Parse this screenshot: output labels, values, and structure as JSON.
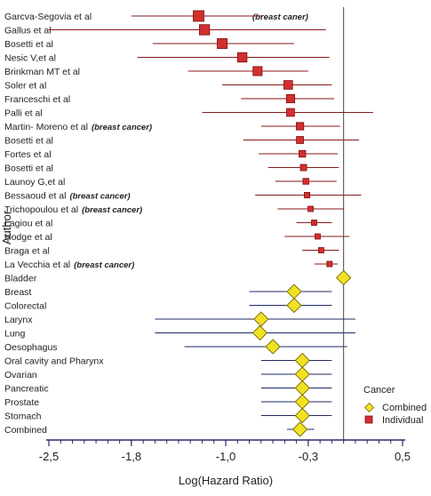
{
  "chart_data": {
    "type": "forest",
    "xlabel": "Log(Hazard Ratio)",
    "ylabel": "Author",
    "xlim": [
      -2.5,
      0.5
    ],
    "x_ticks": [
      -2.5,
      -1.8,
      -1.0,
      -0.3,
      0.5
    ],
    "x_tick_labels": [
      "-2,5",
      "-1,8",
      "-1,0",
      "-0,3",
      "0,5"
    ],
    "reference_line": 0,
    "colors": {
      "individual": "#d32f2f",
      "individual_ci": "#8b1a1a",
      "combined": "#f2e224",
      "combined_edge": "#7a6a00",
      "combined_ci": "#1f2a66",
      "axis": "#2a2a6a"
    },
    "legend": {
      "title": "Cancer",
      "items": [
        "Combined",
        "Individual"
      ],
      "position": "bottom-right"
    },
    "rows": [
      {
        "label": "Garcva-Segovia et al",
        "note": "(breast caner)",
        "group": "Individual",
        "est": -1.23,
        "lo": -1.8,
        "hi": -0.7
      },
      {
        "label": "Gallus et al",
        "note": "",
        "group": "Individual",
        "est": -1.18,
        "lo": -2.5,
        "hi": -0.15
      },
      {
        "label": "Bosetti et al",
        "note": "",
        "group": "Individual",
        "est": -1.03,
        "lo": -1.62,
        "hi": -0.42
      },
      {
        "label": "Nesic V,et al",
        "note": "",
        "group": "Individual",
        "est": -0.86,
        "lo": -1.75,
        "hi": -0.12
      },
      {
        "label": "Brinkman MT et al",
        "note": "",
        "group": "Individual",
        "est": -0.73,
        "lo": -1.32,
        "hi": -0.3
      },
      {
        "label": "Soler et al",
        "note": "",
        "group": "Individual",
        "est": -0.47,
        "lo": -1.03,
        "hi": -0.1
      },
      {
        "label": "Franceschi et al",
        "note": "",
        "group": "Individual",
        "est": -0.45,
        "lo": -0.87,
        "hi": -0.08
      },
      {
        "label": "Palli et al",
        "note": "",
        "group": "Individual",
        "est": -0.45,
        "lo": -1.2,
        "hi": 0.25
      },
      {
        "label": "Martin- Moreno et al",
        "note": "(breast cancer)",
        "group": "Individual",
        "est": -0.37,
        "lo": -0.7,
        "hi": -0.03
      },
      {
        "label": "Bosetti et al",
        "note": "",
        "group": "Individual",
        "est": -0.37,
        "lo": -0.85,
        "hi": 0.13
      },
      {
        "label": "Fortes et al",
        "note": "",
        "group": "Individual",
        "est": -0.35,
        "lo": -0.72,
        "hi": -0.05
      },
      {
        "label": "Bosetti et al",
        "note": "",
        "group": "Individual",
        "est": -0.34,
        "lo": -0.64,
        "hi": -0.04
      },
      {
        "label": "Launoy G,et al",
        "note": "",
        "group": "Individual",
        "est": -0.32,
        "lo": -0.58,
        "hi": -0.06
      },
      {
        "label": "Bessaoud et al",
        "note": "(breast cancer)",
        "group": "Individual",
        "est": -0.31,
        "lo": -0.75,
        "hi": 0.15
      },
      {
        "label": "Trichopoulou et al",
        "note": "(breast cancer)",
        "group": "Individual",
        "est": -0.28,
        "lo": -0.56,
        "hi": 0.0
      },
      {
        "label": "Lagiou et al",
        "note": "",
        "group": "Individual",
        "est": -0.25,
        "lo": -0.4,
        "hi": -0.1
      },
      {
        "label": "Hodge et al",
        "note": "",
        "group": "Individual",
        "est": -0.22,
        "lo": -0.5,
        "hi": 0.05
      },
      {
        "label": "Braga et al",
        "note": "",
        "group": "Individual",
        "est": -0.19,
        "lo": -0.35,
        "hi": -0.04
      },
      {
        "label": "La Vecchia et al",
        "note": "(breast cancer)",
        "group": "Individual",
        "est": -0.12,
        "lo": -0.25,
        "hi": -0.05
      },
      {
        "label": "Bladder",
        "note": "",
        "group": "Combined",
        "est": 0.0,
        "lo": 0.0,
        "hi": 0.0
      },
      {
        "label": "Breast",
        "note": "",
        "group": "Combined",
        "est": -0.42,
        "lo": -0.8,
        "hi": -0.1
      },
      {
        "label": "Colorectal",
        "note": "",
        "group": "Combined",
        "est": -0.42,
        "lo": -0.8,
        "hi": -0.1
      },
      {
        "label": "Larynx",
        "note": "",
        "group": "Combined",
        "est": -0.7,
        "lo": -1.6,
        "hi": 0.1
      },
      {
        "label": "Lung",
        "note": "",
        "group": "Combined",
        "est": -0.71,
        "lo": -1.6,
        "hi": 0.1
      },
      {
        "label": "Oesophagus",
        "note": "",
        "group": "Combined",
        "est": -0.6,
        "lo": -1.35,
        "hi": 0.03
      },
      {
        "label": "Oral cavity and Pharynx",
        "note": "",
        "group": "Combined",
        "est": -0.35,
        "lo": -0.7,
        "hi": -0.1
      },
      {
        "label": "Ovarian",
        "note": "",
        "group": "Combined",
        "est": -0.35,
        "lo": -0.7,
        "hi": -0.1
      },
      {
        "label": "Pancreatic",
        "note": "",
        "group": "Combined",
        "est": -0.35,
        "lo": -0.7,
        "hi": -0.1
      },
      {
        "label": "Prostate",
        "note": "",
        "group": "Combined",
        "est": -0.35,
        "lo": -0.7,
        "hi": -0.1
      },
      {
        "label": "Stomach",
        "note": "",
        "group": "Combined",
        "est": -0.35,
        "lo": -0.7,
        "hi": -0.1
      },
      {
        "label": "Combined",
        "note": "",
        "group": "Combined",
        "est": -0.37,
        "lo": -0.48,
        "hi": -0.25
      }
    ]
  }
}
